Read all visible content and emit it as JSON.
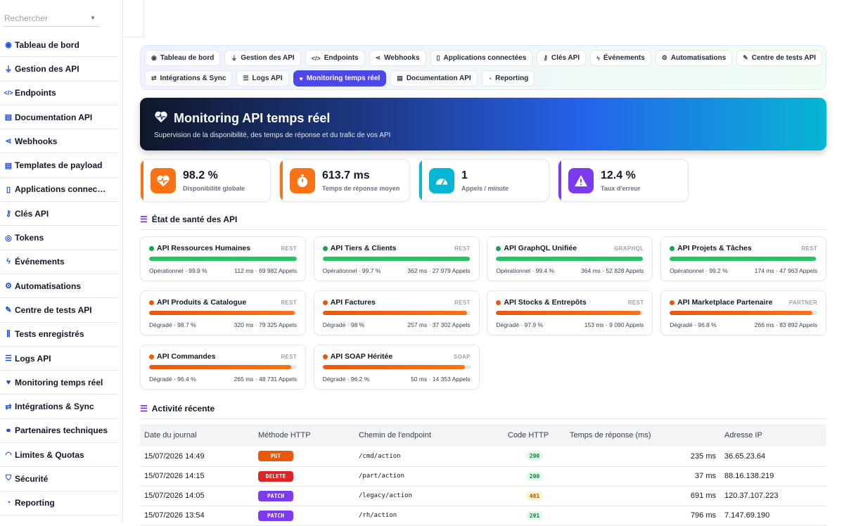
{
  "search": {
    "placeholder": "Rechercher"
  },
  "sidebar": {
    "items": [
      {
        "label": "Tableau de bord",
        "icon": "dashboard-icon"
      },
      {
        "label": "Gestion des API",
        "icon": "plug-icon"
      },
      {
        "label": "Endpoints",
        "icon": "code-icon"
      },
      {
        "label": "Documentation API",
        "icon": "book-icon"
      },
      {
        "label": "Webhooks",
        "icon": "share-icon"
      },
      {
        "label": "Templates de payload",
        "icon": "file-icon"
      },
      {
        "label": "Applications connec…",
        "icon": "mobile-icon"
      },
      {
        "label": "Clés API",
        "icon": "key-icon"
      },
      {
        "label": "Tokens",
        "icon": "fingerprint-icon"
      },
      {
        "label": "Événements",
        "icon": "bolt-icon"
      },
      {
        "label": "Automatisations",
        "icon": "gears-icon"
      },
      {
        "label": "Centre de tests API",
        "icon": "pen-icon"
      },
      {
        "label": "Tests enregistrés",
        "icon": "vials-icon"
      },
      {
        "label": "Logs API",
        "icon": "list-icon"
      },
      {
        "label": "Monitoring temps réel",
        "icon": "heartbeat-icon"
      },
      {
        "label": "Intégrations & Sync",
        "icon": "sync-icon"
      },
      {
        "label": "Partenaires techniques",
        "icon": "handshake-icon"
      },
      {
        "label": "Limites & Quotas",
        "icon": "gauge-icon"
      },
      {
        "label": "Sécurité",
        "icon": "shield-icon"
      },
      {
        "label": "Reporting",
        "icon": "chart-pie-icon"
      }
    ]
  },
  "tabs": {
    "row1": [
      {
        "label": "Tableau de bord",
        "icon": "dashboard-icon",
        "glyph": "◉"
      },
      {
        "label": "Gestion des API",
        "icon": "plug-icon",
        "glyph": "⏚"
      },
      {
        "label": "Endpoints",
        "icon": "code-icon",
        "glyph": "</>"
      },
      {
        "label": "Webhooks",
        "icon": "share-icon",
        "glyph": "⋖"
      },
      {
        "label": "Applications connectées",
        "icon": "mobile-icon",
        "glyph": "▯"
      },
      {
        "label": "Clés API",
        "icon": "key-icon",
        "glyph": "⚷"
      },
      {
        "label": "Événements",
        "icon": "bolt-icon",
        "glyph": "ϟ"
      },
      {
        "label": "Automatisations",
        "icon": "gears-icon",
        "glyph": "⚙"
      },
      {
        "label": "Centre de tests API",
        "icon": "pen-icon",
        "glyph": "✎"
      }
    ],
    "row2": [
      {
        "label": "Intégrations & Sync",
        "icon": "sync-icon",
        "glyph": "⇄"
      },
      {
        "label": "Logs API",
        "icon": "list-icon",
        "glyph": "☰"
      },
      {
        "label": "Monitoring temps réel",
        "icon": "heartbeat-icon",
        "glyph": "♥",
        "active": true
      },
      {
        "label": "Documentation API",
        "icon": "book-icon",
        "glyph": "▤"
      },
      {
        "label": "Reporting",
        "icon": "chart-pie-icon",
        "glyph": "◔"
      }
    ]
  },
  "hero": {
    "title": "Monitoring API temps réel",
    "subtitle": "Supervision de la disponibilité, des temps de réponse et du trafic de vos API"
  },
  "stats": [
    {
      "value": "98.2 %",
      "label": "Disponibilité globale",
      "icon": "heartbeat-icon"
    },
    {
      "value": "613.7 ms",
      "label": "Temps de réponse moyen",
      "icon": "stopwatch-icon"
    },
    {
      "value": "1",
      "label": "Appels / minute",
      "icon": "gauge-icon"
    },
    {
      "value": "12.4 %",
      "label": "Taux d'erreur",
      "icon": "warning-icon"
    }
  ],
  "health": {
    "title": "État de santé des API",
    "cards": [
      {
        "name": "API Ressources Humaines",
        "type": "REST",
        "status": "Opérationnel",
        "uptime": "99.9 %",
        "latency": "112 ms",
        "calls": "69 982 Appels",
        "level": 0.999,
        "state": "ok"
      },
      {
        "name": "API Tiers & Clients",
        "type": "REST",
        "status": "Opérationnel",
        "uptime": "99.7 %",
        "latency": "362 ms",
        "calls": "27 979 Appels",
        "level": 0.997,
        "state": "ok"
      },
      {
        "name": "API GraphQL Unifiée",
        "type": "GRAPHQL",
        "status": "Opérationnel",
        "uptime": "99.4 %",
        "latency": "364 ms",
        "calls": "52 828 Appels",
        "level": 0.994,
        "state": "ok"
      },
      {
        "name": "API Projets & Tâches",
        "type": "REST",
        "status": "Opérationnel",
        "uptime": "99.2 %",
        "latency": "174 ms",
        "calls": "47 963 Appels",
        "level": 0.992,
        "state": "ok"
      },
      {
        "name": "API Produits & Catalogue",
        "type": "REST",
        "status": "Dégradé",
        "uptime": "98.7 %",
        "latency": "320 ms",
        "calls": "79 325 Appels",
        "level": 0.987,
        "state": "warn"
      },
      {
        "name": "API Factures",
        "type": "REST",
        "status": "Dégradé",
        "uptime": "98 %",
        "latency": "257 ms",
        "calls": "37 302 Appels",
        "level": 0.98,
        "state": "warn"
      },
      {
        "name": "API Stocks & Entrepôts",
        "type": "REST",
        "status": "Dégradé",
        "uptime": "97.9 %",
        "latency": "153 ms",
        "calls": "9 090 Appels",
        "level": 0.979,
        "state": "warn"
      },
      {
        "name": "API Marketplace Partenaire",
        "type": "PARTNER",
        "status": "Dégradé",
        "uptime": "96.8 %",
        "latency": "266 ms",
        "calls": "83 892 Appels",
        "level": 0.968,
        "state": "warn"
      },
      {
        "name": "API Commandes",
        "type": "REST",
        "status": "Dégradé",
        "uptime": "96.4 %",
        "latency": "265 ms",
        "calls": "48 731 Appels",
        "level": 0.964,
        "state": "warn"
      },
      {
        "name": "API SOAP Héritée",
        "type": "SOAP",
        "status": "Dégradé",
        "uptime": "96.2 %",
        "latency": "50 ms",
        "calls": "14 353 Appels",
        "level": 0.962,
        "state": "warn"
      }
    ]
  },
  "activity": {
    "title": "Activité récente",
    "columns": [
      "Date du journal",
      "Méthode HTTP",
      "Chemin de l'endpoint",
      "Code HTTP",
      "Temps de réponse (ms)",
      "Adresse IP"
    ],
    "rows": [
      {
        "date": "15/07/2026 14:49",
        "method": "PUT",
        "method_color": "#ea580c",
        "path": "/cmd/action",
        "code": "200",
        "code_bg": "#dcfce7",
        "code_fg": "#15803d",
        "time": "235 ms",
        "ip": "36.65.23.64"
      },
      {
        "date": "15/07/2026 14:15",
        "method": "DELETE",
        "method_color": "#dc2626",
        "path": "/part/action",
        "code": "200",
        "code_bg": "#dcfce7",
        "code_fg": "#15803d",
        "time": "37 ms",
        "ip": "88.16.138.219"
      },
      {
        "date": "15/07/2026 14:05",
        "method": "PATCH",
        "method_color": "#7c3aed",
        "path": "/legacy/action",
        "code": "401",
        "code_bg": "#fef3c7",
        "code_fg": "#b45309",
        "time": "691 ms",
        "ip": "120.37.107.223"
      },
      {
        "date": "15/07/2026 13:54",
        "method": "PATCH",
        "method_color": "#7c3aed",
        "path": "/rh/action",
        "code": "201",
        "code_bg": "#dcfce7",
        "code_fg": "#15803d",
        "time": "796 ms",
        "ip": "7.147.69.190"
      }
    ]
  }
}
